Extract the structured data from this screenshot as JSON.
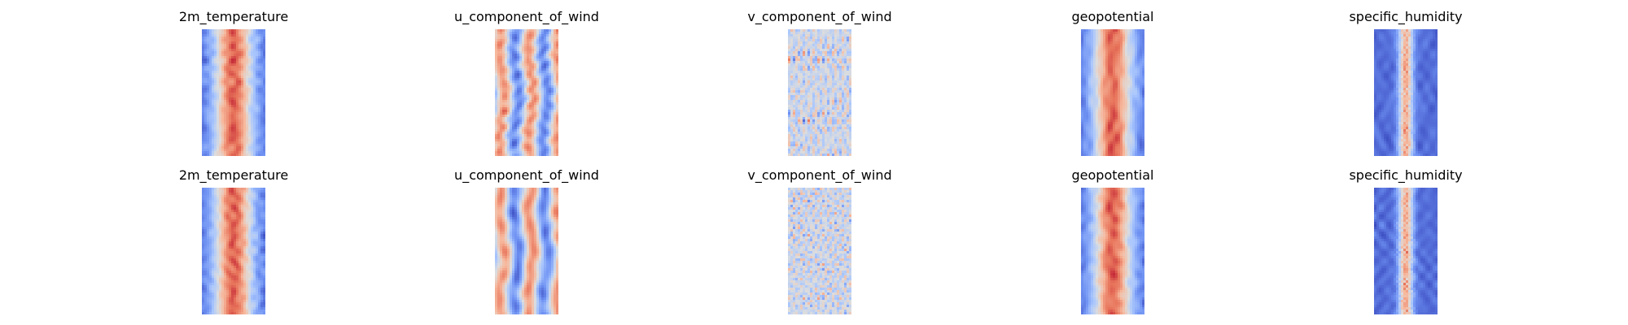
{
  "figure": {
    "colormap": "coolwarm",
    "colormap_stops": [
      "#3b4cc0",
      "#6f92f3",
      "#aac7fd",
      "#dddddd",
      "#f7b89c",
      "#e7745b",
      "#b40426"
    ],
    "background": "#ffffff"
  },
  "rows": [
    {
      "panels": [
        {
          "title": "2m_temperature",
          "pattern": "warm-center-band"
        },
        {
          "title": "u_component_of_wind",
          "pattern": "streaked-bands"
        },
        {
          "title": "v_component_of_wind",
          "pattern": "turbulent-eddies"
        },
        {
          "title": "geopotential",
          "pattern": "warm-center-band"
        },
        {
          "title": "specific_humidity",
          "pattern": "narrow-moist-core"
        }
      ]
    },
    {
      "panels": [
        {
          "title": "2m_temperature",
          "pattern": "warm-center-band"
        },
        {
          "title": "u_component_of_wind",
          "pattern": "streaked-bands"
        },
        {
          "title": "v_component_of_wind",
          "pattern": "turbulent-eddies"
        },
        {
          "title": "geopotential",
          "pattern": "warm-center-band"
        },
        {
          "title": "specific_humidity",
          "pattern": "narrow-moist-core"
        }
      ]
    }
  ],
  "chart_data": [
    {
      "type": "heatmap",
      "title": "2m_temperature",
      "colormap": "coolwarm",
      "axis": "off"
    },
    {
      "type": "heatmap",
      "title": "u_component_of_wind",
      "colormap": "coolwarm",
      "axis": "off"
    },
    {
      "type": "heatmap",
      "title": "v_component_of_wind",
      "colormap": "coolwarm",
      "axis": "off"
    },
    {
      "type": "heatmap",
      "title": "geopotential",
      "colormap": "coolwarm",
      "axis": "off"
    },
    {
      "type": "heatmap",
      "title": "specific_humidity",
      "colormap": "coolwarm",
      "axis": "off"
    },
    {
      "type": "heatmap",
      "title": "2m_temperature",
      "colormap": "coolwarm",
      "axis": "off"
    },
    {
      "type": "heatmap",
      "title": "u_component_of_wind",
      "colormap": "coolwarm",
      "axis": "off"
    },
    {
      "type": "heatmap",
      "title": "v_component_of_wind",
      "colormap": "coolwarm",
      "axis": "off"
    },
    {
      "type": "heatmap",
      "title": "geopotential",
      "colormap": "coolwarm",
      "axis": "off"
    },
    {
      "type": "heatmap",
      "title": "specific_humidity",
      "colormap": "coolwarm",
      "axis": "off"
    }
  ]
}
